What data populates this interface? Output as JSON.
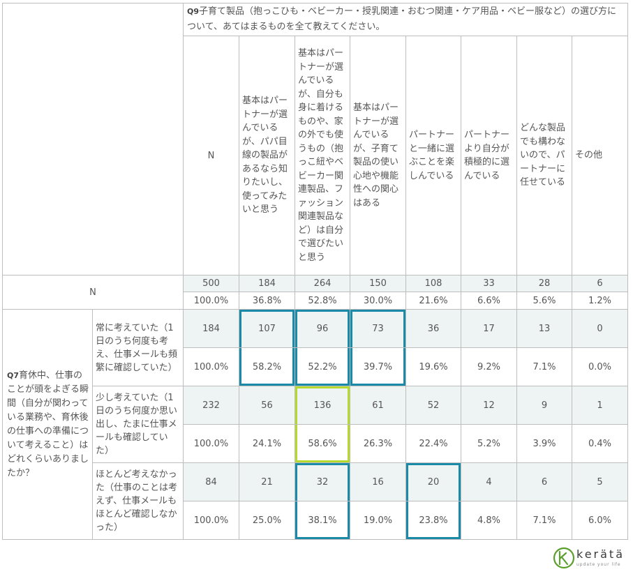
{
  "chart_data": {
    "type": "table",
    "question_header": "Q9 子育て製品（抱っこひも・ベビーカー・授乳関連・おむつ関連・ケア用品・ベビー服など）の選び方について、あてはまるものを全て教えてください。",
    "question_header_tag": "Q9",
    "question_header_rest": "子育て製品（抱っこひも・ベビーカー・授乳関連・おむつ関連・ケア用品・ベビー服など）の選び方について、あてはまるものを全て教えてください。",
    "columns": [
      "N",
      "基本はパートナーが選んでいるが、パパ目線の製品があるなら知りたいし、使ってみたいと思う",
      "基本はパートナーが選んでいるが、自分も身に着けるものや、家の外でも使うもの（抱っこ紐やベビーカー関連製品、ファッション関連製品など）は自分で選びたいと思う",
      "基本はパートナーが選んでいるが、子育て製品の使い心地や機能性への関心はある",
      "パートナーと一緒に選ぶことを楽しんでいる",
      "パートナーより自分が積極的に選んでいる",
      "どんな製品でも構わないので、パートナーに任せている",
      "その他"
    ],
    "total_row": {
      "label": "N",
      "counts": [
        "500",
        "184",
        "264",
        "150",
        "108",
        "33",
        "28",
        "6"
      ],
      "percents": [
        "100.0%",
        "36.8%",
        "52.8%",
        "30.0%",
        "21.6%",
        "6.6%",
        "5.6%",
        "1.2%"
      ]
    },
    "row_question": "Q7 育休中、仕事のことが頭をよぎる瞬間（自分が関わっている業務や、育休後の仕事への準備について考えること）はどれくらいありましたか？",
    "row_question_tag": "Q7",
    "row_question_rest": "育休中、仕事のことが頭をよぎる瞬間（自分が関わっている業務や、育休後の仕事への準備について考えること）はどれくらいありましたか？",
    "rows": [
      {
        "label": "常に考えていた（1日のうち何度も考え、仕事メールも頻繁に確認していた）",
        "counts": [
          "184",
          "107",
          "96",
          "73",
          "36",
          "17",
          "13",
          "0"
        ],
        "percents": [
          "100.0%",
          "58.2%",
          "52.2%",
          "39.7%",
          "19.6%",
          "9.2%",
          "7.1%",
          "0.0%"
        ]
      },
      {
        "label": "少し考えていた（1日のうち何度か思い出し、たまに仕事メールも確認していた）",
        "counts": [
          "232",
          "56",
          "136",
          "61",
          "52",
          "12",
          "9",
          "1"
        ],
        "percents": [
          "100.0%",
          "24.1%",
          "58.6%",
          "26.3%",
          "22.4%",
          "5.2%",
          "3.9%",
          "0.4%"
        ]
      },
      {
        "label": "ほとんど考えなかった（仕事のことは考えず、仕事メールもほとんど確認しなかった）",
        "counts": [
          "84",
          "21",
          "32",
          "16",
          "20",
          "4",
          "6",
          "5"
        ],
        "percents": [
          "100.0%",
          "25.0%",
          "38.1%",
          "19.0%",
          "23.8%",
          "4.8%",
          "7.1%",
          "6.0%"
        ]
      }
    ],
    "highlights": {
      "blue": [
        [
          0,
          1
        ],
        [
          0,
          2
        ],
        [
          0,
          3
        ],
        [
          2,
          2
        ],
        [
          2,
          4
        ]
      ],
      "green": [
        [
          1,
          2
        ]
      ]
    },
    "highlight_colors": {
      "blue": "#1a8aa8",
      "green": "#b6d930",
      "row_shade": "#eef4f3",
      "border": "#bdbdbd"
    }
  },
  "logo": {
    "name": "kerata-logo",
    "word": "kerätä",
    "subtext": "update your life",
    "colors": {
      "green": "#5aa02c",
      "text": "#3a3a3a"
    }
  }
}
